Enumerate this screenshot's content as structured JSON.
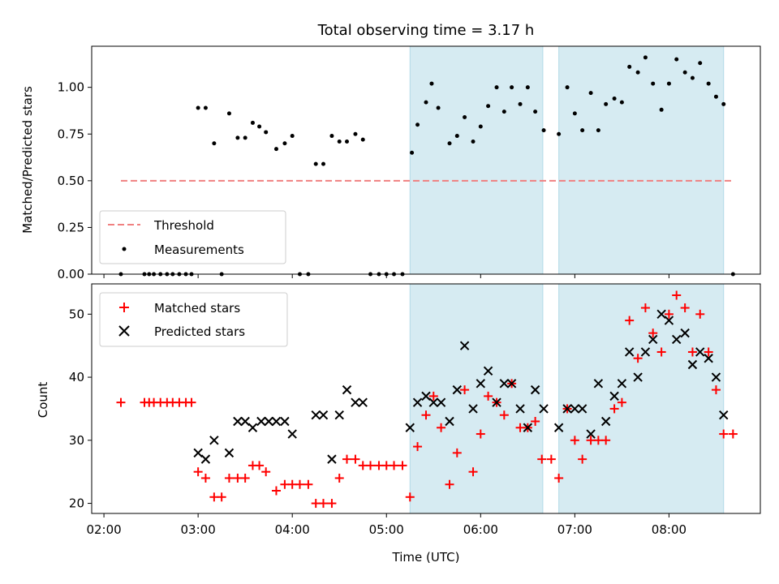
{
  "chart_data": [
    {
      "type": "scatter",
      "title": "Total observing time = 3.17 h",
      "ylabel": "Matched/Predicted stars",
      "xlabel": "",
      "xlim_hours": [
        1.87,
        8.97
      ],
      "ylim": [
        0.0,
        1.22
      ],
      "y_ticks": [
        0.0,
        0.25,
        0.5,
        0.75,
        1.0
      ],
      "y_tick_labels": [
        "0.00",
        "0.25",
        "0.50",
        "0.75",
        "1.00"
      ],
      "grid": false,
      "legend_placement": "lower-left",
      "shaded_spans_hours": [
        [
          5.25,
          6.66
        ],
        [
          6.83,
          8.58
        ]
      ],
      "shade_color": "#add8e6",
      "threshold": {
        "name": "Threshold",
        "value": 0.5,
        "x_range_hours": [
          2.18,
          8.68
        ],
        "color": "#f08080",
        "style": "dashed"
      },
      "series": [
        {
          "name": "Measurements",
          "color": "#000000",
          "marker": "dot",
          "x_hours": [
            2.18,
            2.43,
            2.48,
            2.53,
            2.6,
            2.67,
            2.73,
            2.8,
            2.87,
            2.93,
            3.0,
            3.08,
            3.17,
            3.25,
            3.33,
            3.42,
            3.5,
            3.58,
            3.65,
            3.72,
            3.83,
            3.92,
            4.0,
            4.08,
            4.17,
            4.25,
            4.33,
            4.42,
            4.5,
            4.58,
            4.67,
            4.75,
            4.83,
            4.92,
            5.0,
            5.08,
            5.17,
            5.27,
            5.33,
            5.42,
            5.48,
            5.55,
            5.67,
            5.75,
            5.83,
            5.92,
            6.0,
            6.08,
            6.17,
            6.25,
            6.33,
            6.42,
            6.5,
            6.58,
            6.67,
            6.83,
            6.92,
            7.0,
            7.08,
            7.17,
            7.25,
            7.33,
            7.42,
            7.5,
            7.58,
            7.67,
            7.75,
            7.83,
            7.92,
            8.0,
            8.08,
            8.17,
            8.25,
            8.33,
            8.42,
            8.5,
            8.58,
            8.68
          ],
          "values": [
            0.0,
            0.0,
            0.0,
            0.0,
            0.0,
            0.0,
            0.0,
            0.0,
            0.0,
            0.0,
            0.89,
            0.89,
            0.7,
            0.0,
            0.86,
            0.73,
            0.73,
            0.81,
            0.79,
            0.76,
            0.67,
            0.7,
            0.74,
            0.0,
            0.0,
            0.59,
            0.59,
            0.74,
            0.71,
            0.71,
            0.75,
            0.72,
            0.0,
            0.0,
            0.0,
            0.0,
            0.0,
            0.65,
            0.8,
            0.92,
            1.02,
            0.89,
            0.7,
            0.74,
            0.84,
            0.71,
            0.79,
            0.9,
            1.0,
            0.87,
            1.0,
            0.91,
            1.0,
            0.87,
            0.77,
            0.75,
            1.0,
            0.86,
            0.77,
            0.97,
            0.77,
            0.91,
            0.94,
            0.92,
            1.11,
            1.08,
            1.16,
            1.02,
            0.88,
            1.02,
            1.15,
            1.08,
            1.05,
            1.13,
            1.02,
            0.95,
            0.91,
            0.0
          ]
        }
      ]
    },
    {
      "type": "scatter",
      "xlabel": "Time (UTC)",
      "ylabel": "Count",
      "xlim_hours": [
        1.87,
        8.97
      ],
      "ylim": [
        18.4,
        54.8
      ],
      "x_ticks_hours": [
        2,
        3,
        4,
        5,
        6,
        7,
        8
      ],
      "x_tick_labels": [
        "02:00",
        "03:00",
        "04:00",
        "05:00",
        "06:00",
        "07:00",
        "08:00"
      ],
      "y_ticks": [
        20,
        30,
        40,
        50
      ],
      "y_tick_labels": [
        "20",
        "30",
        "40",
        "50"
      ],
      "grid": false,
      "legend_placement": "upper-left",
      "shaded_spans_hours": [
        [
          5.25,
          6.66
        ],
        [
          6.83,
          8.58
        ]
      ],
      "shade_color": "#add8e6",
      "series": [
        {
          "name": "Matched stars",
          "color": "#ff0000",
          "marker": "plus",
          "x_hours": [
            2.18,
            2.43,
            2.48,
            2.53,
            2.6,
            2.67,
            2.73,
            2.8,
            2.87,
            2.93,
            3.0,
            3.08,
            3.17,
            3.25,
            3.33,
            3.42,
            3.5,
            3.58,
            3.65,
            3.72,
            3.83,
            3.92,
            4.0,
            4.08,
            4.17,
            4.25,
            4.33,
            4.42,
            4.5,
            4.58,
            4.67,
            4.75,
            4.83,
            4.92,
            5.0,
            5.08,
            5.17,
            5.25,
            5.33,
            5.42,
            5.5,
            5.58,
            5.67,
            5.75,
            5.83,
            5.92,
            6.0,
            6.08,
            6.17,
            6.25,
            6.33,
            6.42,
            6.5,
            6.58,
            6.65,
            6.75,
            6.83,
            6.92,
            7.0,
            7.08,
            7.17,
            7.25,
            7.33,
            7.42,
            7.5,
            7.58,
            7.67,
            7.75,
            7.83,
            7.92,
            8.0,
            8.08,
            8.17,
            8.25,
            8.33,
            8.42,
            8.5,
            8.58,
            8.68
          ],
          "values": [
            36,
            36,
            36,
            36,
            36,
            36,
            36,
            36,
            36,
            36,
            25,
            24,
            21,
            21,
            24,
            24,
            24,
            26,
            26,
            25,
            22,
            23,
            23,
            23,
            23,
            20,
            20,
            20,
            24,
            27,
            27,
            26,
            26,
            26,
            26,
            26,
            26,
            21,
            29,
            34,
            37,
            32,
            23,
            28,
            38,
            25,
            31,
            37,
            36,
            34,
            39,
            32,
            32,
            33,
            27,
            27,
            24,
            35,
            30,
            27,
            30,
            30,
            30,
            35,
            36,
            49,
            43,
            51,
            47,
            44,
            50,
            53,
            51,
            44,
            50,
            44,
            38,
            31,
            31
          ]
        },
        {
          "name": "Predicted stars",
          "color": "#000000",
          "marker": "x",
          "x_hours": [
            3.0,
            3.08,
            3.17,
            3.33,
            3.42,
            3.5,
            3.58,
            3.67,
            3.75,
            3.83,
            3.92,
            4.0,
            4.25,
            4.33,
            4.42,
            4.5,
            4.58,
            4.67,
            4.75,
            5.25,
            5.33,
            5.42,
            5.5,
            5.58,
            5.67,
            5.75,
            5.83,
            5.92,
            6.0,
            6.08,
            6.17,
            6.25,
            6.33,
            6.42,
            6.5,
            6.58,
            6.67,
            6.83,
            6.92,
            7.0,
            7.08,
            7.17,
            7.25,
            7.33,
            7.42,
            7.5,
            7.58,
            7.67,
            7.75,
            7.83,
            7.92,
            8.0,
            8.08,
            8.17,
            8.25,
            8.33,
            8.42,
            8.5,
            8.58
          ],
          "values": [
            28,
            27,
            30,
            28,
            33,
            33,
            32,
            33,
            33,
            33,
            33,
            31,
            34,
            34,
            27,
            34,
            38,
            36,
            36,
            32,
            36,
            37,
            36,
            36,
            33,
            38,
            45,
            35,
            39,
            41,
            36,
            39,
            39,
            35,
            32,
            38,
            35,
            32,
            35,
            35,
            35,
            31,
            39,
            33,
            37,
            39,
            44,
            40,
            44,
            46,
            50,
            49,
            46,
            47,
            42,
            44,
            43,
            40,
            34
          ]
        }
      ]
    }
  ]
}
